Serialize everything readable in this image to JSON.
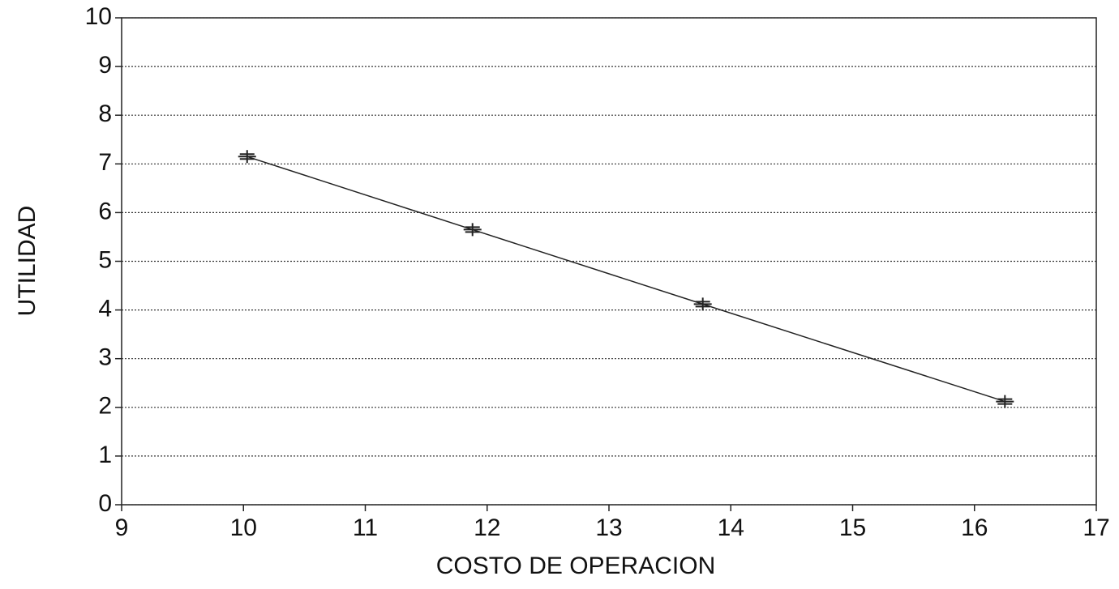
{
  "chart_data": {
    "type": "line",
    "x_label": "COSTO DE OPERACION",
    "y_label": "UTILIDAD",
    "x": [
      10.03,
      11.88,
      13.77,
      16.25
    ],
    "values": [
      7.15,
      5.65,
      4.12,
      2.12
    ],
    "color": "#222222",
    "xlim": [
      9,
      17
    ],
    "xticks": [
      9,
      10,
      11,
      12,
      13,
      14,
      15,
      16,
      17
    ],
    "ylim": [
      0,
      10
    ],
    "yticks": [
      0,
      1,
      2,
      3,
      4,
      5,
      6,
      7,
      8,
      9,
      10
    ],
    "grid": true
  }
}
